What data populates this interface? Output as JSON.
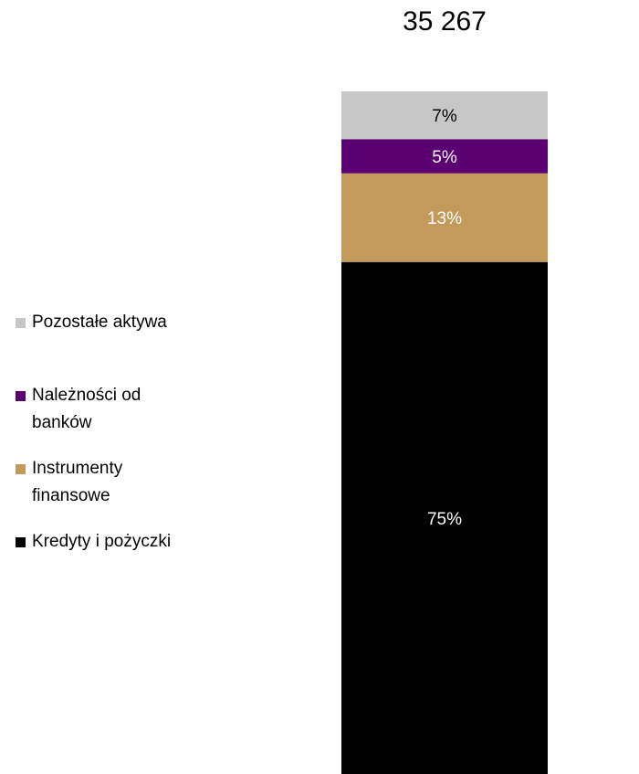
{
  "chart_data": {
    "type": "bar",
    "stacked": true,
    "title": "35 267",
    "categories": [
      ""
    ],
    "series": [
      {
        "name": "Kredyty i pożyczki",
        "values": [
          75
        ],
        "label": "75%",
        "color": "#000000"
      },
      {
        "name": "Instrumenty finansowe",
        "values": [
          13
        ],
        "label": "13%",
        "color": "#C49A5A"
      },
      {
        "name": "Należności od banków",
        "values": [
          5
        ],
        "label": "5%",
        "color": "#5A0070"
      },
      {
        "name": "Pozostałe aktywa",
        "values": [
          7
        ],
        "label": "7%",
        "color": "#C7C7C7"
      }
    ],
    "ylim": [
      0,
      100
    ],
    "grid": false,
    "legend_position": "left",
    "legend_order": [
      "Pozostałe aktywa",
      "Należności od banków",
      "Instrumenty finansowe",
      "Kredyty i pożyczki"
    ]
  }
}
